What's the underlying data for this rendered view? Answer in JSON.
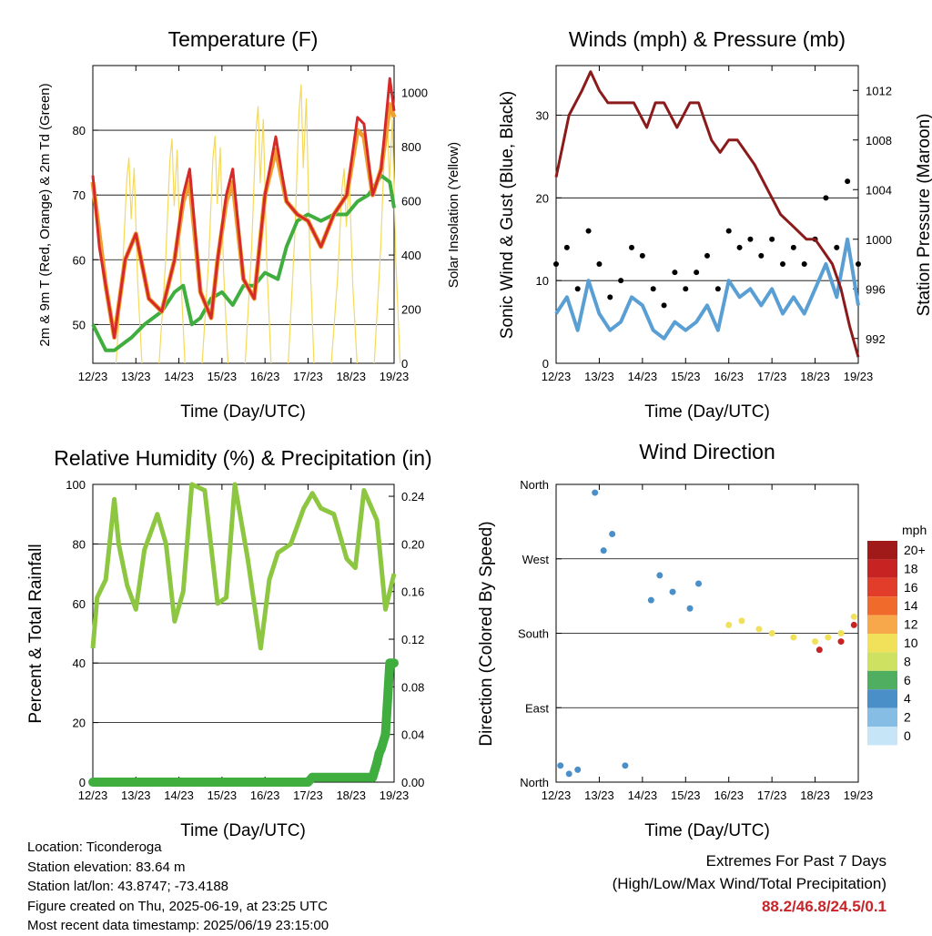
{
  "chart_data": [
    {
      "type": "line",
      "title": "Temperature (F)",
      "xlabel": "Time (Day/UTC)",
      "ylabel": "2m & 9m T (Red, Orange) & 2m Td (Green)",
      "y2label": "Solar Insolation (Yellow)",
      "x_ticks": [
        "12/23",
        "13/23",
        "14/23",
        "15/23",
        "16/23",
        "17/23",
        "18/23",
        "19/23"
      ],
      "ylim": [
        44,
        90
      ],
      "y_ticks": [
        50,
        60,
        70,
        80
      ],
      "y2lim": [
        0,
        1100
      ],
      "y2_ticks": [
        0,
        200,
        400,
        600,
        800,
        1000
      ],
      "series": [
        {
          "color": "#d42a2a",
          "axis": "left",
          "x": [
            0,
            0.15,
            0.3,
            0.5,
            0.75,
            1.0,
            1.3,
            1.6,
            1.9,
            2.1,
            2.25,
            2.5,
            2.75,
            2.9,
            3.1,
            3.25,
            3.5,
            3.75,
            4.0,
            4.25,
            4.5,
            4.75,
            5.0,
            5.3,
            5.6,
            5.9,
            6.15,
            6.3,
            6.5,
            6.7,
            6.9,
            7.0
          ],
          "y": [
            73,
            62,
            56,
            48,
            60,
            64,
            54,
            52,
            60,
            70,
            74,
            55,
            51,
            60,
            70,
            74,
            57,
            54,
            70,
            79,
            69,
            67,
            66,
            62,
            67,
            70,
            82,
            81,
            70,
            74,
            88,
            83
          ]
        },
        {
          "color": "#f0a030",
          "axis": "left",
          "x": [
            0,
            0.3,
            0.5,
            0.75,
            1.0,
            1.3,
            1.6,
            1.9,
            2.1,
            2.25,
            2.5,
            2.75,
            2.9,
            3.1,
            3.25,
            3.5,
            3.75,
            4.0,
            4.25,
            4.5,
            4.75,
            5.0,
            5.3,
            5.6,
            5.9,
            6.15,
            6.3,
            6.5,
            6.7,
            6.9,
            7.0
          ],
          "y": [
            72,
            56,
            48,
            60,
            64,
            54,
            52,
            60,
            69,
            72,
            55,
            51,
            60,
            69,
            72,
            57,
            54,
            70,
            77,
            69,
            67,
            66,
            62,
            67,
            70,
            80,
            79,
            70,
            74,
            84,
            82
          ]
        },
        {
          "color": "#3fae3f",
          "axis": "left",
          "x": [
            0,
            0.3,
            0.5,
            0.9,
            1.2,
            1.6,
            1.9,
            2.1,
            2.3,
            2.5,
            2.75,
            3.0,
            3.25,
            3.5,
            3.75,
            4.0,
            4.3,
            4.5,
            4.75,
            5.0,
            5.3,
            5.6,
            5.9,
            6.15,
            6.4,
            6.7,
            6.9,
            7.0
          ],
          "y": [
            50,
            46,
            46,
            48,
            50,
            52,
            55,
            56,
            50,
            51,
            54,
            55,
            53,
            56,
            56,
            58,
            57,
            62,
            66,
            67,
            66,
            67,
            67,
            69,
            70,
            73,
            72,
            68
          ]
        },
        {
          "color": "#f5d95a",
          "axis": "right",
          "peaks_x": [
            0.84,
            1.84,
            2.84,
            3.84,
            4.84,
            5.84,
            6.84
          ],
          "peaks_y": [
            760,
            830,
            840,
            950,
            1030,
            720,
            950
          ]
        }
      ]
    },
    {
      "type": "scatter",
      "title": "Winds (mph) & Pressure (mb)",
      "xlabel": "Time (Day/UTC)",
      "ylabel": "Sonic Wind & Gust (Blue, Black)",
      "y2label": "Station Pressure (Maroon)",
      "x_ticks": [
        "12/23",
        "13/23",
        "14/23",
        "15/23",
        "16/23",
        "17/23",
        "18/23",
        "19/23"
      ],
      "ylim": [
        0,
        36
      ],
      "y_ticks": [
        0,
        10,
        20,
        30
      ],
      "y2lim": [
        990,
        1014
      ],
      "y2_ticks": [
        992,
        996,
        1000,
        1004,
        1008,
        1012
      ],
      "series": [
        {
          "color": "#8b1a1a",
          "axis": "right",
          "type": "line",
          "x": [
            0,
            0.3,
            0.6,
            0.8,
            1.0,
            1.2,
            1.5,
            1.8,
            2.1,
            2.3,
            2.5,
            2.8,
            3.1,
            3.3,
            3.6,
            3.8,
            4.0,
            4.2,
            4.4,
            4.6,
            4.9,
            5.2,
            5.5,
            5.8,
            6.0,
            6.2,
            6.4,
            6.6,
            6.8,
            7.0
          ],
          "y": [
            1005,
            1010,
            1012,
            1013.5,
            1012,
            1011,
            1011,
            1011,
            1009,
            1011,
            1011,
            1009,
            1011,
            1011,
            1008,
            1007,
            1008,
            1008,
            1007,
            1006,
            1004,
            1002,
            1001,
            1000,
            1000,
            999,
            998,
            996,
            993,
            990.5
          ]
        },
        {
          "color": "#000000",
          "axis": "left",
          "type": "scatter",
          "x": [
            0,
            0.25,
            0.5,
            0.75,
            1.0,
            1.25,
            1.5,
            1.75,
            2.0,
            2.25,
            2.5,
            2.75,
            3.0,
            3.25,
            3.5,
            3.75,
            4.0,
            4.25,
            4.5,
            4.75,
            5.0,
            5.25,
            5.5,
            5.75,
            6.0,
            6.25,
            6.5,
            6.75,
            7.0
          ],
          "y": [
            12,
            14,
            9,
            16,
            12,
            8,
            10,
            14,
            13,
            9,
            7,
            11,
            9,
            11,
            13,
            9,
            16,
            14,
            15,
            13,
            15,
            12,
            14,
            12,
            15,
            20,
            14,
            22,
            12
          ]
        },
        {
          "color": "#5a9fd4",
          "axis": "left",
          "type": "line",
          "x": [
            0,
            0.25,
            0.5,
            0.75,
            1.0,
            1.25,
            1.5,
            1.75,
            2.0,
            2.25,
            2.5,
            2.75,
            3.0,
            3.25,
            3.5,
            3.75,
            4.0,
            4.25,
            4.5,
            4.75,
            5.0,
            5.25,
            5.5,
            5.75,
            6.0,
            6.25,
            6.5,
            6.75,
            7.0
          ],
          "y": [
            6,
            8,
            4,
            10,
            6,
            4,
            5,
            8,
            7,
            4,
            3,
            5,
            4,
            5,
            7,
            4,
            10,
            8,
            9,
            7,
            9,
            6,
            8,
            6,
            9,
            12,
            8,
            15,
            7
          ]
        }
      ]
    },
    {
      "type": "line",
      "title": "Relative Humidity (%) & Precipitation (in)",
      "xlabel": "Time (Day/UTC)",
      "ylabel": "Percent & Total Rainfall",
      "x_ticks": [
        "12/23",
        "13/23",
        "14/23",
        "15/23",
        "16/23",
        "17/23",
        "18/23",
        "19/23"
      ],
      "ylim": [
        0,
        100
      ],
      "y_ticks": [
        0,
        20,
        40,
        60,
        80,
        100
      ],
      "y2lim": [
        0,
        0.25
      ],
      "y2_ticks": [
        "0.00",
        "0.04",
        "0.08",
        "0.12",
        "0.16",
        "0.20",
        "0.24"
      ],
      "series": [
        {
          "color": "#8dc641",
          "axis": "left",
          "x": [
            0,
            0.1,
            0.3,
            0.5,
            0.6,
            0.8,
            1.0,
            1.2,
            1.5,
            1.7,
            1.9,
            2.1,
            2.3,
            2.6,
            2.9,
            3.1,
            3.3,
            3.6,
            3.9,
            4.1,
            4.3,
            4.6,
            4.9,
            5.1,
            5.3,
            5.6,
            5.9,
            6.1,
            6.3,
            6.6,
            6.8,
            7.0
          ],
          "y": [
            45,
            62,
            68,
            95,
            80,
            66,
            58,
            78,
            90,
            80,
            54,
            64,
            100,
            98,
            60,
            62,
            100,
            75,
            45,
            68,
            77,
            80,
            92,
            97,
            92,
            90,
            75,
            72,
            98,
            88,
            58,
            70
          ]
        },
        {
          "color": "#3fae3f",
          "axis": "right",
          "x": [
            0,
            5.0,
            5.1,
            6.5,
            6.6,
            6.65,
            6.7,
            6.8,
            6.9,
            7.0
          ],
          "y": [
            0,
            0,
            0.004,
            0.004,
            0.016,
            0.024,
            0.028,
            0.04,
            0.1,
            0.1
          ]
        }
      ]
    },
    {
      "type": "scatter",
      "title": "Wind Direction",
      "xlabel": "Time (Day/UTC)",
      "ylabel": "Direction (Colored By Speed)",
      "x_ticks": [
        "12/23",
        "13/23",
        "14/23",
        "15/23",
        "16/23",
        "17/23",
        "18/23",
        "19/23"
      ],
      "y_categories": [
        "North",
        "East",
        "South",
        "West",
        "North"
      ],
      "legend": {
        "title": "mph",
        "labels": [
          "20+",
          "18",
          "16",
          "14",
          "12",
          "10",
          "8",
          "6",
          "4",
          "2",
          "0"
        ],
        "colors": [
          "#a01a1a",
          "#c82323",
          "#e23d2a",
          "#f06a2c",
          "#f7a84a",
          "#f1e05a",
          "#cfe160",
          "#4fae60",
          "#4a8fc8",
          "#86bde5",
          "#c6e6f7"
        ]
      },
      "series": [
        {
          "color": "#4a8fc8",
          "x": [
            0.1,
            0.3,
            0.5,
            0.9,
            1.1,
            1.3,
            1.6,
            2.2,
            2.4,
            2.7,
            3.1,
            3.3
          ],
          "y": [
            20,
            10,
            15,
            350,
            280,
            300,
            20,
            220,
            250,
            230,
            210,
            240
          ]
        },
        {
          "color": "#f1e05a",
          "x": [
            4.0,
            4.3,
            4.7,
            5.0,
            5.5,
            6.0,
            6.3,
            6.6,
            6.9
          ],
          "y": [
            190,
            195,
            185,
            180,
            175,
            170,
            175,
            180,
            200
          ]
        },
        {
          "color": "#c82323",
          "x": [
            6.1,
            6.6,
            6.9
          ],
          "y": [
            160,
            170,
            190
          ]
        }
      ]
    }
  ],
  "info": {
    "location": "Location: Ticonderoga",
    "elevation": "Station elevation: 83.64 m",
    "latlon": "Station lat/lon: 43.8747; -73.4188",
    "created": "Figure created on Thu, 2025-06-19, at 23:25 UTC",
    "recent": "Most recent data timestamp: 2025/06/19 23:15:00"
  },
  "extremes": {
    "title": "Extremes For Past 7 Days",
    "subtitle": "(High/Low/Max Wind/Total Precipitation)",
    "value": "88.2/46.8/24.5/0.1"
  }
}
